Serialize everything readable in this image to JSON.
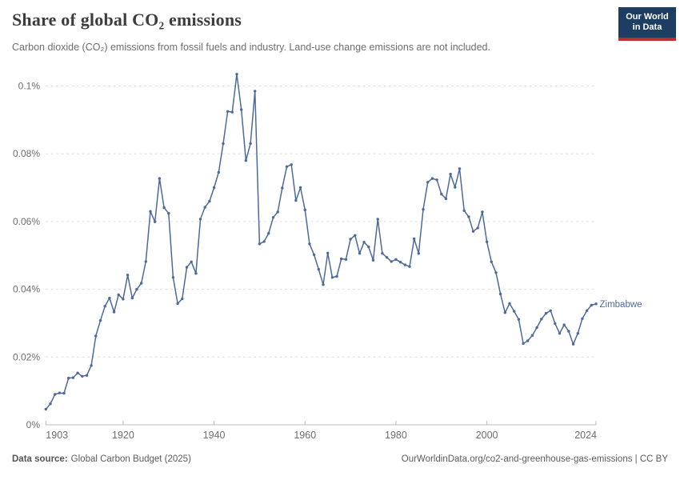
{
  "header": {
    "title": "Share of global CO₂ emissions",
    "logo": {
      "line1": "Our World",
      "line2": "in Data",
      "bg_color": "#1d3d63",
      "accent_color": "#bc2f28"
    }
  },
  "subtitle": "Carbon dioxide (CO₂) emissions from fossil fuels and industry. Land-use change emissions are not included.",
  "chart_data": {
    "type": "line",
    "title": "Share of global CO₂ emissions",
    "entity_label": "Zimbabwe",
    "line_color": "#4c6a9c",
    "grid": true,
    "legend_position": "end-of-line",
    "xlabel": "",
    "ylabel": "",
    "xlim": [
      1903,
      2024
    ],
    "ylim": [
      0,
      0.105
    ],
    "yticks": [
      {
        "value": 0,
        "label": "0%"
      },
      {
        "value": 0.02,
        "label": "0.02%"
      },
      {
        "value": 0.04,
        "label": "0.04%"
      },
      {
        "value": 0.06,
        "label": "0.06%"
      },
      {
        "value": 0.08,
        "label": "0.08%"
      },
      {
        "value": 0.1,
        "label": "0.1%"
      }
    ],
    "xticks": [
      1903,
      1920,
      1940,
      1960,
      1980,
      2000,
      2024
    ],
    "series": [
      {
        "name": "Zimbabwe",
        "unit": "%",
        "x": [
          1903,
          1904,
          1905,
          1906,
          1907,
          1908,
          1909,
          1910,
          1911,
          1912,
          1913,
          1914,
          1915,
          1916,
          1917,
          1918,
          1919,
          1920,
          1921,
          1922,
          1923,
          1924,
          1925,
          1926,
          1927,
          1928,
          1929,
          1930,
          1931,
          1932,
          1933,
          1934,
          1935,
          1936,
          1937,
          1938,
          1939,
          1940,
          1941,
          1942,
          1943,
          1944,
          1945,
          1946,
          1947,
          1948,
          1949,
          1950,
          1951,
          1952,
          1953,
          1954,
          1955,
          1956,
          1957,
          1958,
          1959,
          1960,
          1961,
          1962,
          1963,
          1964,
          1965,
          1966,
          1967,
          1968,
          1969,
          1970,
          1971,
          1972,
          1973,
          1974,
          1975,
          1976,
          1977,
          1978,
          1979,
          1980,
          1981,
          1982,
          1983,
          1984,
          1985,
          1986,
          1987,
          1988,
          1989,
          1990,
          1991,
          1992,
          1993,
          1994,
          1995,
          1996,
          1997,
          1998,
          1999,
          2000,
          2001,
          2002,
          2003,
          2004,
          2005,
          2006,
          2007,
          2008,
          2009,
          2010,
          2011,
          2012,
          2013,
          2014,
          2015,
          2016,
          2017,
          2018,
          2019,
          2020,
          2021,
          2022,
          2023,
          2024
        ],
        "values": [
          0.0046,
          0.0062,
          0.009,
          0.0094,
          0.0093,
          0.0138,
          0.0139,
          0.0153,
          0.0143,
          0.0146,
          0.0175,
          0.0262,
          0.0308,
          0.035,
          0.0374,
          0.0333,
          0.0384,
          0.0371,
          0.0442,
          0.0374,
          0.04,
          0.0418,
          0.0482,
          0.063,
          0.0599,
          0.0727,
          0.0641,
          0.0624,
          0.0435,
          0.0358,
          0.0372,
          0.0465,
          0.0481,
          0.0447,
          0.0607,
          0.0642,
          0.066,
          0.07,
          0.0745,
          0.083,
          0.0925,
          0.0923,
          0.1035,
          0.093,
          0.078,
          0.083,
          0.0985,
          0.0534,
          0.0541,
          0.0565,
          0.0612,
          0.0628,
          0.0699,
          0.0762,
          0.0768,
          0.0662,
          0.07,
          0.0634,
          0.0534,
          0.0502,
          0.0459,
          0.0414,
          0.0507,
          0.0435,
          0.0438,
          0.049,
          0.0488,
          0.0548,
          0.0559,
          0.0506,
          0.0539,
          0.0525,
          0.0486,
          0.0607,
          0.0506,
          0.0494,
          0.0482,
          0.0488,
          0.048,
          0.0472,
          0.0467,
          0.0549,
          0.0506,
          0.0636,
          0.0716,
          0.0727,
          0.0723,
          0.0681,
          0.0667,
          0.074,
          0.0701,
          0.0756,
          0.0632,
          0.0614,
          0.0571,
          0.0581,
          0.0628,
          0.054,
          0.0481,
          0.0449,
          0.0386,
          0.0331,
          0.0358,
          0.0335,
          0.0311,
          0.024,
          0.0248,
          0.0264,
          0.0287,
          0.0312,
          0.0329,
          0.0337,
          0.0299,
          0.027,
          0.0295,
          0.0276,
          0.0238,
          0.027,
          0.0313,
          0.0337,
          0.0353,
          0.0357
        ]
      }
    ],
    "style": {
      "grid_color": "#dcdcdc",
      "axis_color": "#bcbcbc",
      "tick_label_color": "#6e6e6e",
      "marker_radius": 1.7
    }
  },
  "footer": {
    "source_label": "Data source:",
    "source_text": "Global Carbon Budget (2025)",
    "link_text": "OurWorldinData.org/co2-and-greenhouse-gas-emissions | CC BY"
  }
}
